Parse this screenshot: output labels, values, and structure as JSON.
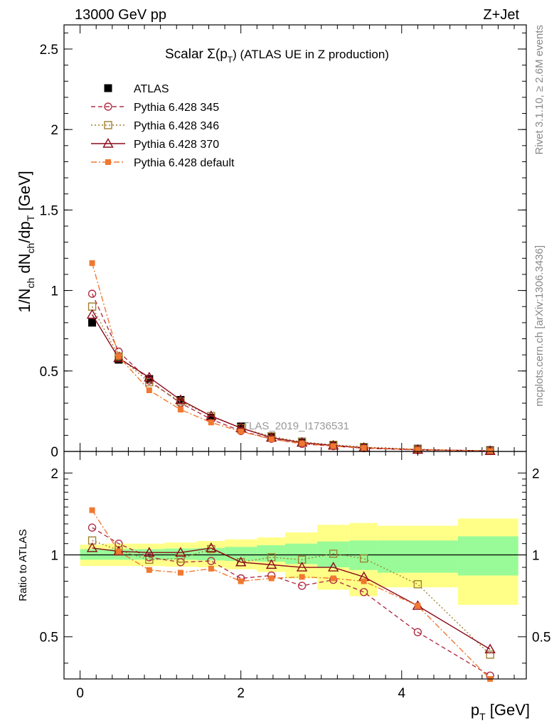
{
  "header": {
    "energy_label": "13000 GeV pp",
    "process_label": "Z+Jet"
  },
  "side_labels": {
    "rivet": "Rivet 3.1.10, ≥ 2.6M events",
    "mcplots": "mcplots.cern.ch [arXiv:1306.3436]"
  },
  "chart_data": [
    {
      "type": "line",
      "panel": "main",
      "title": "Scalar Σ(p_T) (ATLAS UE in Z production)",
      "title_main": "Scalar Σ(p",
      "title_sub": "T",
      "title_end": ") (ATLAS UE in Z production)",
      "watermark": "ATLAS_2019_I1736531",
      "xlabel": "p_T [GeV]",
      "ylabel": "1/N_ch dN_ch/dp_T [GeV]",
      "xlim": [
        -0.2,
        5.55
      ],
      "ylim": [
        0,
        2.65
      ],
      "yticks": [
        0,
        0.5,
        1,
        1.5,
        2,
        2.5
      ],
      "ytick_labels": [
        "0",
        "0.5",
        "1",
        "1.5",
        "2",
        "2.5"
      ],
      "legend_position": "top-left",
      "x": [
        0.15,
        0.48,
        0.86,
        1.25,
        1.63,
        2.0,
        2.38,
        2.76,
        3.15,
        3.53,
        4.2,
        5.1
      ],
      "series": [
        {
          "name": "ATLAS",
          "color": "#000000",
          "marker": "square-filled",
          "line": "none",
          "values": [
            0.8,
            0.57,
            0.45,
            0.32,
            0.21,
            0.155,
            0.094,
            0.061,
            0.041,
            0.028,
            0.017,
            0.008
          ]
        },
        {
          "name": "Pythia 6.428 345",
          "color": "#b03048",
          "marker": "circle-open",
          "line": "dashed",
          "values": [
            0.98,
            0.62,
            0.44,
            0.3,
            0.2,
            0.127,
            0.079,
            0.047,
            0.033,
            0.02,
            0.009,
            0.0029
          ]
        },
        {
          "name": "Pythia 6.428 346",
          "color": "#a08030",
          "marker": "square-open",
          "line": "dotted",
          "values": [
            0.9,
            0.59,
            0.43,
            0.31,
            0.22,
            0.145,
            0.093,
            0.059,
            0.041,
            0.027,
            0.013,
            0.0035
          ]
        },
        {
          "name": "Pythia 6.428 370",
          "color": "#8b0a1a",
          "marker": "triangle-open",
          "line": "solid",
          "values": [
            0.85,
            0.58,
            0.46,
            0.32,
            0.22,
            0.146,
            0.086,
            0.055,
            0.037,
            0.023,
            0.011,
            0.0036
          ]
        },
        {
          "name": "Pythia 6.428 default",
          "color": "#f07830",
          "marker": "square-small-filled",
          "line": "dashdot",
          "values": [
            1.17,
            0.59,
            0.38,
            0.26,
            0.18,
            0.124,
            0.076,
            0.05,
            0.033,
            0.022,
            0.011,
            0.0028
          ]
        }
      ]
    },
    {
      "type": "line",
      "panel": "ratio",
      "ylabel": "Ratio to ATLAS",
      "xlabel": "p_T [GeV]",
      "xlim": [
        -0.2,
        5.55
      ],
      "ylim": [
        0.35,
        2.4
      ],
      "yscale": "log",
      "yticks": [
        0.5,
        1,
        2
      ],
      "ytick_labels": [
        "0.5",
        "1",
        "2"
      ],
      "xticks": [
        0,
        2,
        4
      ],
      "xtick_labels": [
        "0",
        "2",
        "4"
      ],
      "x": [
        0.15,
        0.48,
        0.86,
        1.25,
        1.63,
        2.0,
        2.38,
        2.76,
        3.15,
        3.53,
        4.2,
        5.1
      ],
      "bins": [
        0.0,
        0.3,
        0.65,
        1.05,
        1.45,
        1.8,
        2.2,
        2.55,
        2.95,
        3.35,
        3.7,
        4.7,
        5.45
      ],
      "band_inner": {
        "color": "#98fb98",
        "low": [
          0.96,
          0.96,
          0.96,
          0.96,
          0.955,
          0.95,
          0.945,
          0.925,
          0.9,
          0.88,
          0.86,
          0.84
        ],
        "high": [
          1.05,
          1.05,
          1.05,
          1.055,
          1.06,
          1.07,
          1.085,
          1.1,
          1.12,
          1.13,
          1.13,
          1.17
        ]
      },
      "band_outer": {
        "color": "#ffff88",
        "low": [
          0.91,
          0.91,
          0.91,
          0.905,
          0.9,
          0.885,
          0.865,
          0.82,
          0.745,
          0.705,
          0.76,
          0.655
        ],
        "high": [
          1.09,
          1.1,
          1.1,
          1.11,
          1.125,
          1.14,
          1.16,
          1.21,
          1.29,
          1.31,
          1.28,
          1.36
        ]
      },
      "series": [
        {
          "name": "Pythia 6.428 345",
          "color": "#b03048",
          "marker": "circle-open",
          "line": "dashed",
          "values": [
            1.26,
            1.1,
            0.98,
            0.94,
            0.95,
            0.82,
            0.84,
            0.77,
            0.81,
            0.73,
            0.52,
            0.36
          ]
        },
        {
          "name": "Pythia 6.428 346",
          "color": "#a08030",
          "marker": "square-open",
          "line": "dotted",
          "values": [
            1.13,
            1.04,
            0.96,
            0.97,
            1.05,
            0.94,
            0.98,
            0.96,
            1.01,
            0.97,
            0.78,
            0.43
          ]
        },
        {
          "name": "Pythia 6.428 370",
          "color": "#8b0a1a",
          "marker": "triangle-open",
          "line": "solid",
          "values": [
            1.06,
            1.03,
            1.02,
            1.02,
            1.06,
            0.94,
            0.92,
            0.9,
            0.9,
            0.83,
            0.65,
            0.45
          ]
        },
        {
          "name": "Pythia 6.428 default",
          "color": "#f07830",
          "marker": "square-small-filled",
          "line": "dashdot",
          "values": [
            1.46,
            1.03,
            0.88,
            0.86,
            0.89,
            0.8,
            0.82,
            0.83,
            0.82,
            0.8,
            0.65,
            0.35
          ]
        }
      ]
    }
  ]
}
